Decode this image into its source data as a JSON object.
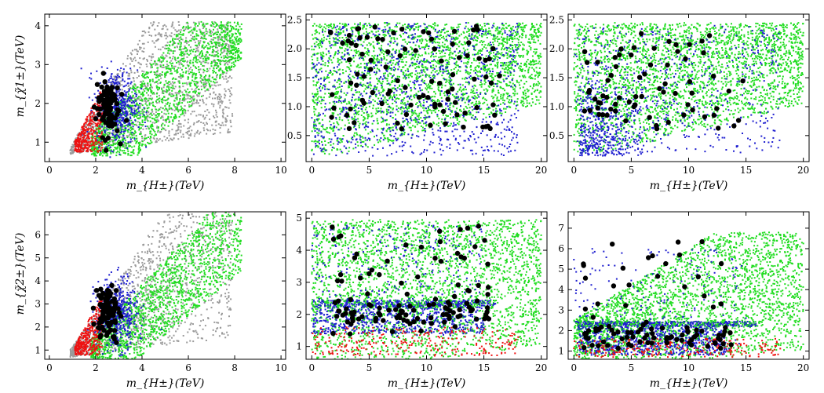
{
  "chart_data": [
    {
      "type": "scatter",
      "xlabel": "m_{H±}(TeV)",
      "ylabel": "m_{χ̃1±}(TeV)",
      "xlim": [
        -0.2,
        10.2
      ],
      "ylim": [
        0.5,
        4.3
      ],
      "xticks": [
        0,
        2,
        4,
        6,
        8,
        10
      ],
      "yticks": [
        1,
        2,
        3,
        4
      ],
      "series": [
        {
          "name": "gray",
          "color": "#9a9a9a"
        },
        {
          "name": "green",
          "color": "#22dd22"
        },
        {
          "name": "blue",
          "color": "#1f1fd0"
        },
        {
          "name": "red",
          "color": "#ee1111"
        },
        {
          "name": "black",
          "color": "#000000"
        }
      ]
    },
    {
      "type": "scatter",
      "xlabel": "m_{H±}(TeV)",
      "ylabel": "",
      "xlim": [
        -0.5,
        20.5
      ],
      "ylim": [
        0.05,
        2.6
      ],
      "xticks": [
        0,
        5,
        10,
        15,
        20
      ],
      "yticks": [
        0.5,
        1.0,
        1.5,
        2.0,
        2.5
      ],
      "ytickLabels": [
        "0.5",
        "1.0",
        "1.5",
        "2.0",
        "2.5"
      ],
      "series": [
        {
          "name": "green",
          "color": "#22dd22"
        },
        {
          "name": "blue",
          "color": "#1f1fd0"
        },
        {
          "name": "black",
          "color": "#000000"
        }
      ]
    },
    {
      "type": "scatter",
      "xlabel": "m_{H±}(TeV)",
      "ylabel": "",
      "xlim": [
        -0.5,
        20.5
      ],
      "ylim": [
        0.05,
        2.6
      ],
      "xticks": [
        0,
        5,
        10,
        15,
        20
      ],
      "yticks": [
        0.5,
        1.0,
        1.5,
        2.0,
        2.5
      ],
      "ytickLabels": [
        "0.5",
        "1.0",
        "1.5",
        "2.0",
        "2.5"
      ],
      "series": [
        {
          "name": "green",
          "color": "#22dd22"
        },
        {
          "name": "blue",
          "color": "#1f1fd0"
        },
        {
          "name": "black",
          "color": "#000000"
        }
      ]
    },
    {
      "type": "scatter",
      "xlabel": "m_{H±}(TeV)",
      "ylabel": "m_{χ̃2±}(TeV)",
      "xlim": [
        -0.2,
        10.2
      ],
      "ylim": [
        0.6,
        7.0
      ],
      "xticks": [
        0,
        2,
        4,
        6,
        8,
        10
      ],
      "yticks": [
        1,
        2,
        3,
        4,
        5,
        6
      ],
      "series": [
        {
          "name": "gray",
          "color": "#9a9a9a"
        },
        {
          "name": "green",
          "color": "#22dd22"
        },
        {
          "name": "blue",
          "color": "#1f1fd0"
        },
        {
          "name": "red",
          "color": "#ee1111"
        },
        {
          "name": "black",
          "color": "#000000"
        }
      ]
    },
    {
      "type": "scatter",
      "xlabel": "m_{H±}(TeV)",
      "ylabel": "",
      "xlim": [
        -0.5,
        20.5
      ],
      "ylim": [
        0.6,
        5.2
      ],
      "xticks": [
        0,
        5,
        10,
        15,
        20
      ],
      "yticks": [
        1,
        2,
        3,
        4,
        5
      ],
      "series": [
        {
          "name": "green",
          "color": "#22dd22"
        },
        {
          "name": "blue",
          "color": "#1f1fd0"
        },
        {
          "name": "red",
          "color": "#ee1111"
        },
        {
          "name": "black",
          "color": "#000000"
        }
      ]
    },
    {
      "type": "scatter",
      "xlabel": "m_{H±}(TeV)",
      "ylabel": "",
      "xlim": [
        -0.5,
        20.5
      ],
      "ylim": [
        0.6,
        7.8
      ],
      "xticks": [
        0,
        5,
        10,
        15,
        20
      ],
      "yticks": [
        1,
        2,
        3,
        4,
        5,
        6,
        7
      ],
      "series": [
        {
          "name": "green",
          "color": "#22dd22"
        },
        {
          "name": "blue",
          "color": "#1f1fd0"
        },
        {
          "name": "red",
          "color": "#ee1111"
        },
        {
          "name": "black",
          "color": "#000000"
        }
      ]
    }
  ]
}
